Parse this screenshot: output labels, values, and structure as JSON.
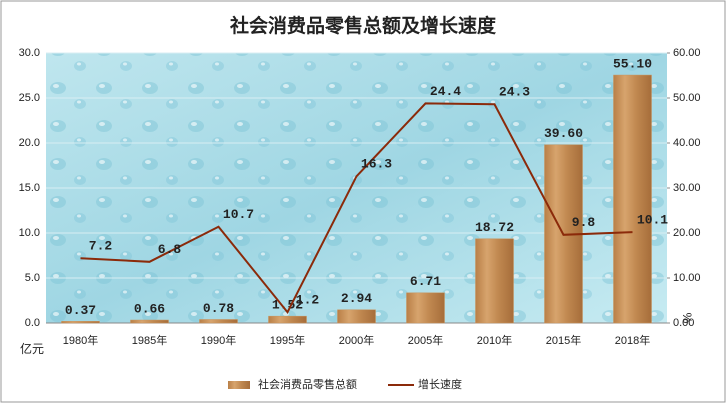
{
  "chart_data": {
    "type": "bar_line",
    "title": "社会消费品零售总额及增长速度",
    "categories": [
      "1980年",
      "1985年",
      "1990年",
      "1995年",
      "2000年",
      "2005年",
      "2010年",
      "2015年",
      "2018年"
    ],
    "series": [
      {
        "name": "社会消费品零售总额",
        "type": "bar",
        "axis": "y2",
        "color": "#c8935c",
        "values": [
          0.37,
          0.66,
          0.78,
          1.52,
          2.94,
          6.71,
          18.72,
          39.6,
          55.1
        ],
        "value_labels": [
          "0.37",
          "0.66",
          "0.78",
          "1.52",
          "2.94",
          "6.71",
          "18.72",
          "39.60",
          "55.10"
        ]
      },
      {
        "name": "增长速度",
        "type": "line",
        "axis": "y",
        "color": "#8b2a0a",
        "values": [
          7.2,
          6.8,
          10.7,
          1.2,
          16.3,
          24.4,
          24.3,
          9.8,
          10.1
        ]
      }
    ],
    "y_label": "亿元",
    "y2_label": "%",
    "ylim": [
      0,
      30
    ],
    "yticks": [
      {
        "value": 0,
        "label": "0.0"
      },
      {
        "value": 5,
        "label": "5.0"
      },
      {
        "value": 10,
        "label": "10.0"
      },
      {
        "value": 15,
        "label": "15.0"
      },
      {
        "value": 20,
        "label": "20.0"
      },
      {
        "value": 25,
        "label": "25.0"
      },
      {
        "value": 30,
        "label": "30.0"
      }
    ],
    "y2lim": [
      0,
      60
    ],
    "y2ticks": [
      {
        "value": 0,
        "label": "0.00"
      },
      {
        "value": 10,
        "label": "10.00"
      },
      {
        "value": 20,
        "label": "20.00"
      },
      {
        "value": 30,
        "label": "30.00"
      },
      {
        "value": 40,
        "label": "40.00"
      },
      {
        "value": 50,
        "label": "50.00"
      },
      {
        "value": 60,
        "label": "60.00"
      }
    ],
    "grid": true,
    "legend": "bottom"
  }
}
